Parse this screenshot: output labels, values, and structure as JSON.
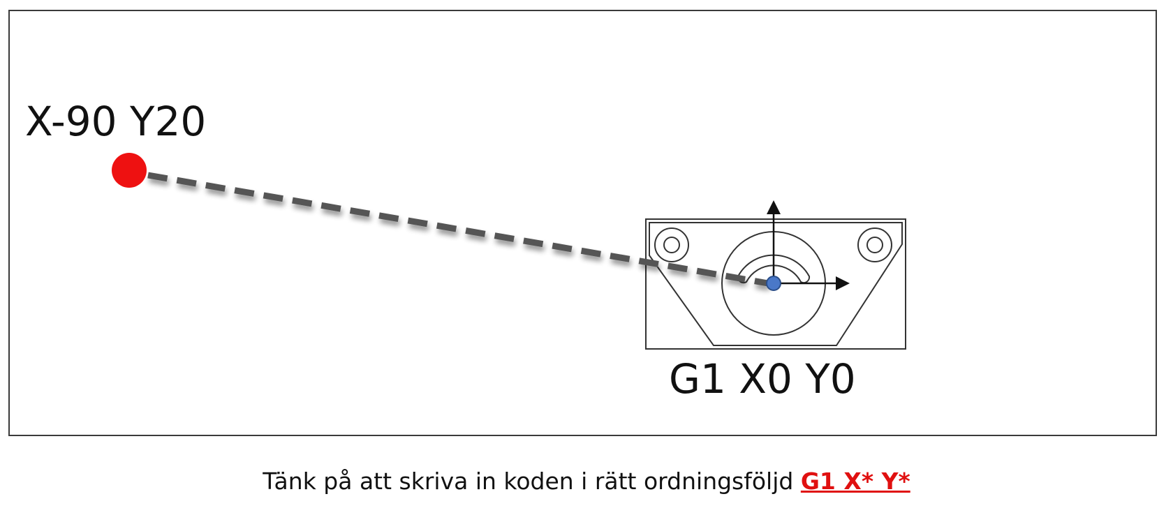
{
  "start_point": {
    "label": "X-90 Y20",
    "color": "#ee1111"
  },
  "end_point": {
    "label": "G1 X0 Y0",
    "color": "#4a78c8"
  },
  "path_color": "#555555",
  "caption": {
    "text": "Tänk på att skriva in koden i rätt ordningsföljd ",
    "code": "G1 X* Y*",
    "code_color": "#e01010"
  }
}
